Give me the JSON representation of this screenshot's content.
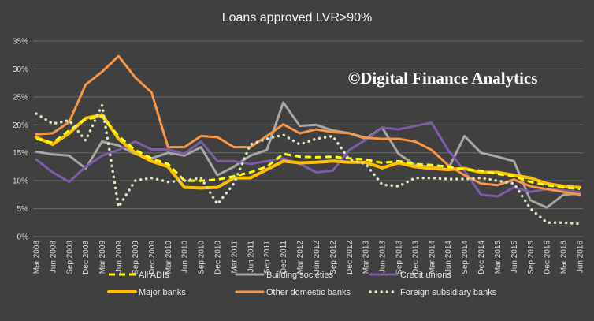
{
  "chart_data": {
    "type": "line",
    "title": "Loans approved  LVR>90%",
    "watermark": "©Digital Finance Analytics",
    "yticks": [
      "0%",
      "5%",
      "10%",
      "15%",
      "20%",
      "25%",
      "30%",
      "35%"
    ],
    "ylim": [
      0,
      35
    ],
    "grid": true,
    "legend_position": "bottom",
    "categories": [
      "Mar 2008",
      "Jun 2008",
      "Sep 2008",
      "Dec 2008",
      "Mar 2009",
      "Jun 2009",
      "Sep 2009",
      "Dec 2009",
      "Mar 2010",
      "Jun 2010",
      "Sep 2010",
      "Dec 2010",
      "Mar 2011",
      "Jun 2011",
      "Sep 2011",
      "Dec 2011",
      "Mar 2012",
      "Jun 2012",
      "Sep 2012",
      "Dec 2012",
      "Mar 2013",
      "Jun 2013",
      "Sep 2013",
      "Dec 2013",
      "Mar 2014",
      "Jun 2014",
      "Sep 2014",
      "Dec 2014",
      "Mar 2015",
      "Jun 2015",
      "Sep 2015",
      "Dec 2015",
      "Mar 2016",
      "Jun 2016"
    ],
    "series": [
      {
        "name": "All ADIs",
        "color": "#ffff00",
        "style": "dashed",
        "values": [
          17.5,
          16.8,
          19.0,
          21.0,
          21.5,
          18.0,
          15.5,
          14.0,
          13.0,
          10.0,
          10.0,
          10.2,
          10.8,
          11.5,
          12.5,
          14.8,
          14.3,
          14.2,
          14.3,
          14.0,
          13.8,
          13.2,
          13.5,
          13.0,
          12.8,
          12.5,
          12.0,
          11.8,
          11.2,
          10.8,
          9.8,
          9.2,
          8.8,
          8.5
        ]
      },
      {
        "name": "Building societies",
        "color": "#a6a6a6",
        "style": "solid",
        "values": [
          15.2,
          14.7,
          14.5,
          12.2,
          17.0,
          16.3,
          14.8,
          14.0,
          15.0,
          14.5,
          16.0,
          11.0,
          12.5,
          14.5,
          15.5,
          24.0,
          19.8,
          20.0,
          19.0,
          18.5,
          17.5,
          19.5,
          14.8,
          12.8,
          12.5,
          12.0,
          18.0,
          15.0,
          14.3,
          13.5,
          6.5,
          5.2,
          7.5,
          7.7
        ]
      },
      {
        "name": "Credit unions",
        "color": "#7d5ca6",
        "style": "solid",
        "values": [
          13.8,
          11.5,
          9.8,
          12.5,
          14.5,
          15.5,
          17.0,
          15.6,
          15.6,
          14.8,
          17.0,
          13.5,
          13.5,
          13.0,
          13.5,
          14.0,
          13.0,
          11.5,
          11.8,
          15.5,
          17.3,
          19.5,
          19.2,
          19.8,
          20.4,
          15.5,
          11.8,
          7.5,
          7.2,
          8.8,
          8.0,
          8.5,
          8.3,
          7.9
        ]
      },
      {
        "name": "Major banks",
        "color": "#ffc000",
        "style": "solid",
        "values": [
          17.8,
          16.5,
          18.5,
          21.2,
          21.8,
          17.5,
          15.0,
          13.5,
          12.5,
          8.8,
          8.7,
          8.8,
          10.5,
          10.5,
          12.0,
          13.5,
          13.2,
          13.3,
          13.5,
          13.3,
          13.3,
          12.3,
          13.2,
          12.5,
          12.2,
          12.0,
          12.2,
          11.5,
          11.5,
          11.0,
          10.5,
          9.5,
          9.0,
          8.8
        ]
      },
      {
        "name": "Other domestic banks",
        "color": "#f79646",
        "style": "solid",
        "values": [
          18.3,
          18.5,
          20.5,
          27.2,
          29.5,
          32.3,
          28.5,
          25.8,
          16.0,
          16.0,
          18.0,
          17.8,
          16.0,
          16.0,
          18.0,
          20.1,
          18.5,
          19.2,
          18.7,
          18.5,
          17.7,
          17.5,
          17.5,
          17.0,
          15.5,
          12.8,
          11.0,
          9.5,
          9.2,
          10.2,
          9.0,
          8.5,
          8.0,
          7.5
        ]
      },
      {
        "name": "Foreign subsidiary banks",
        "color": "#d7e4bd",
        "style": "dotted",
        "values": [
          22.0,
          20.2,
          20.8,
          17.2,
          23.5,
          5.3,
          10.0,
          10.5,
          9.8,
          10.0,
          10.5,
          5.8,
          9.5,
          16.5,
          17.5,
          18.2,
          16.5,
          17.5,
          18.0,
          13.8,
          13.0,
          9.3,
          9.0,
          10.5,
          10.5,
          10.3,
          10.3,
          10.5,
          10.0,
          9.5,
          5.0,
          2.5,
          2.5,
          2.3
        ]
      }
    ],
    "legend_order": [
      0,
      1,
      2,
      3,
      4,
      5
    ]
  }
}
